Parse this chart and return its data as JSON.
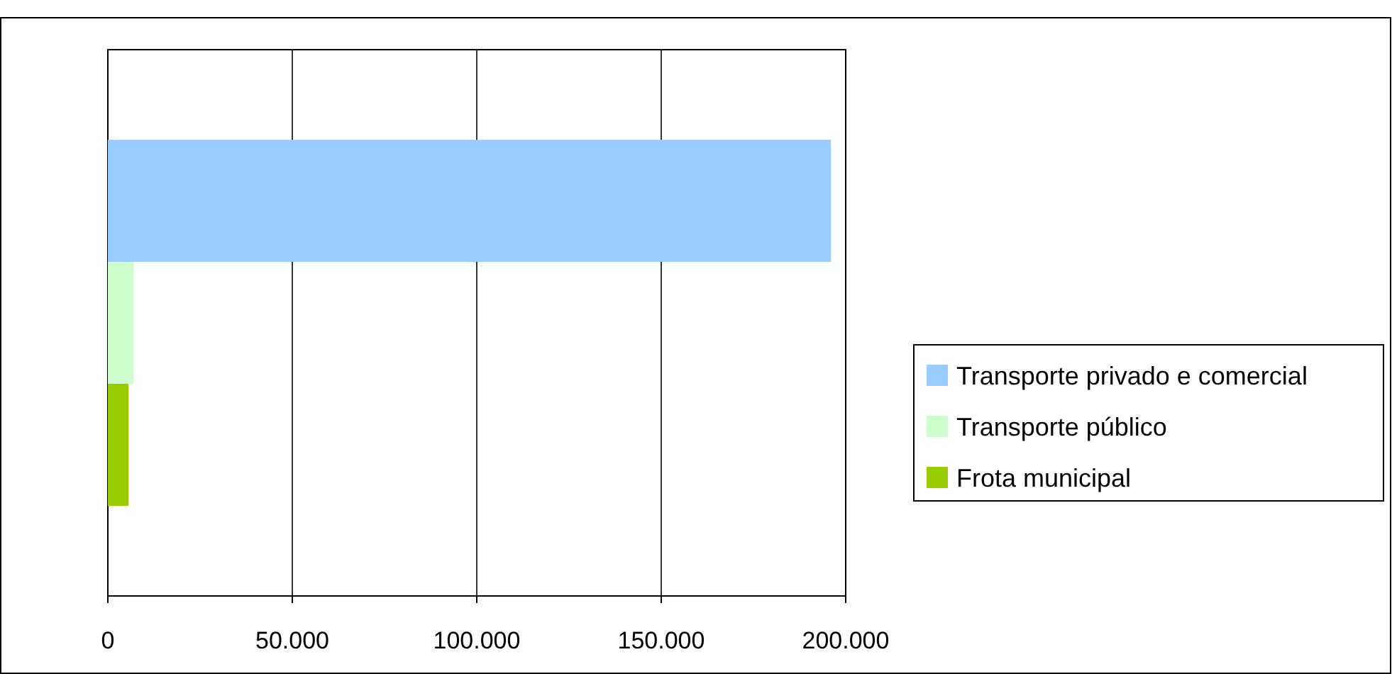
{
  "chart_data": {
    "type": "bar",
    "orientation": "horizontal",
    "categories": [
      null
    ],
    "series": [
      {
        "name": "Transporte privado e comercial",
        "color": "#99ccff",
        "values": [
          196000
        ]
      },
      {
        "name": "Transporte público",
        "color": "#ccffcc",
        "values": [
          7000
        ]
      },
      {
        "name": "Frota municipal",
        "color": "#99cc00",
        "values": [
          5600
        ]
      }
    ],
    "xlim": [
      0,
      200000
    ],
    "xticks": [
      0,
      {
        "value": 50000,
        "label": "50.000"
      },
      {
        "value": 100000,
        "label": "100.000"
      },
      {
        "value": 150000,
        "label": "150.000"
      },
      {
        "value": 200000,
        "label": "200.000"
      }
    ],
    "grid": "x",
    "legend": "right"
  }
}
